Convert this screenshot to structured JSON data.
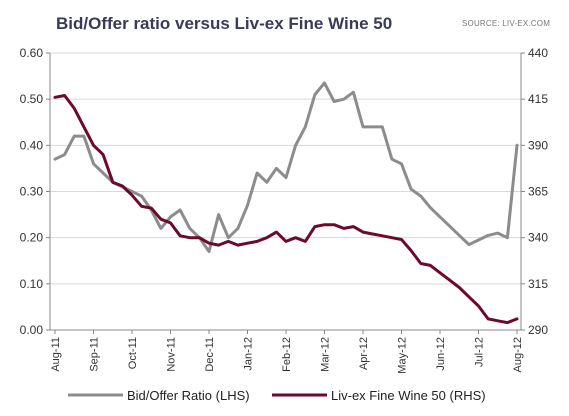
{
  "chart_data": {
    "type": "line",
    "title": "Bid/Offer ratio versus Liv-ex Fine Wine 50",
    "source": "SOURCE: LIV-EX.COM",
    "x_ticks": [
      "Aug-11",
      "Sep-11",
      "Oct-11",
      "Nov-11",
      "Dec-11",
      "Jan-12",
      "Feb-12",
      "Mar-12",
      "Apr-12",
      "May-12",
      "Jun-12",
      "Jul-12",
      "Aug-12"
    ],
    "y_left": {
      "range": [
        0,
        0.6
      ],
      "ticks": [
        "0.00",
        "0.10",
        "0.20",
        "0.30",
        "0.40",
        "0.50",
        "0.60"
      ]
    },
    "y_right": {
      "range": [
        290,
        440
      ],
      "ticks": [
        "290",
        "315",
        "340",
        "365",
        "390",
        "415",
        "440"
      ]
    },
    "grid": "horizontal",
    "legend_position": "bottom",
    "series": [
      {
        "name": "Bid/Offer Ratio (LHS)",
        "axis": "left",
        "color": "#8c8c8c",
        "x": [
          0,
          0.25,
          0.5,
          0.75,
          1,
          1.25,
          1.5,
          1.75,
          2,
          2.25,
          2.5,
          2.75,
          3,
          3.25,
          3.5,
          3.75,
          4,
          4.25,
          4.5,
          4.75,
          5,
          5.25,
          5.5,
          5.75,
          6,
          6.25,
          6.5,
          6.75,
          7,
          7.25,
          7.5,
          7.75,
          8,
          8.25,
          8.5,
          8.75,
          9,
          9.25,
          9.5,
          9.75,
          10,
          10.25,
          10.5,
          10.75,
          11,
          11.25,
          11.5,
          11.75,
          12
        ],
        "values": [
          0.37,
          0.38,
          0.42,
          0.42,
          0.36,
          0.34,
          0.32,
          0.31,
          0.3,
          0.29,
          0.26,
          0.22,
          0.245,
          0.26,
          0.22,
          0.2,
          0.17,
          0.25,
          0.2,
          0.22,
          0.27,
          0.34,
          0.32,
          0.35,
          0.33,
          0.4,
          0.44,
          0.51,
          0.535,
          0.495,
          0.5,
          0.515,
          0.44,
          0.44,
          0.44,
          0.37,
          0.36,
          0.305,
          0.29,
          0.265,
          0.245,
          0.225,
          0.205,
          0.185,
          0.195,
          0.205,
          0.21,
          0.2,
          0.4
        ]
      },
      {
        "name": "Liv-ex Fine Wine 50 (RHS)",
        "axis": "right",
        "color": "#6b0a2e",
        "x": [
          0,
          0.25,
          0.5,
          0.75,
          1,
          1.25,
          1.5,
          1.75,
          2,
          2.25,
          2.5,
          2.75,
          3,
          3.25,
          3.5,
          3.75,
          4,
          4.25,
          4.5,
          4.75,
          5,
          5.25,
          5.5,
          5.75,
          6,
          6.25,
          6.5,
          6.75,
          7,
          7.25,
          7.5,
          7.75,
          8,
          8.25,
          8.5,
          8.75,
          9,
          9.25,
          9.5,
          9.75,
          10,
          10.25,
          10.5,
          10.75,
          11,
          11.25,
          11.5,
          11.75,
          12
        ],
        "values": [
          416,
          417,
          410,
          400,
          390,
          385,
          370,
          368,
          363,
          357,
          356,
          350,
          348,
          341,
          340,
          340,
          337,
          336,
          338,
          336,
          337,
          338,
          340,
          343,
          338,
          340,
          338,
          346,
          347,
          347,
          345,
          346,
          343,
          342,
          341,
          340,
          339,
          333,
          326,
          325,
          321,
          317,
          313,
          308,
          303,
          296,
          295,
          294,
          296
        ]
      }
    ]
  }
}
